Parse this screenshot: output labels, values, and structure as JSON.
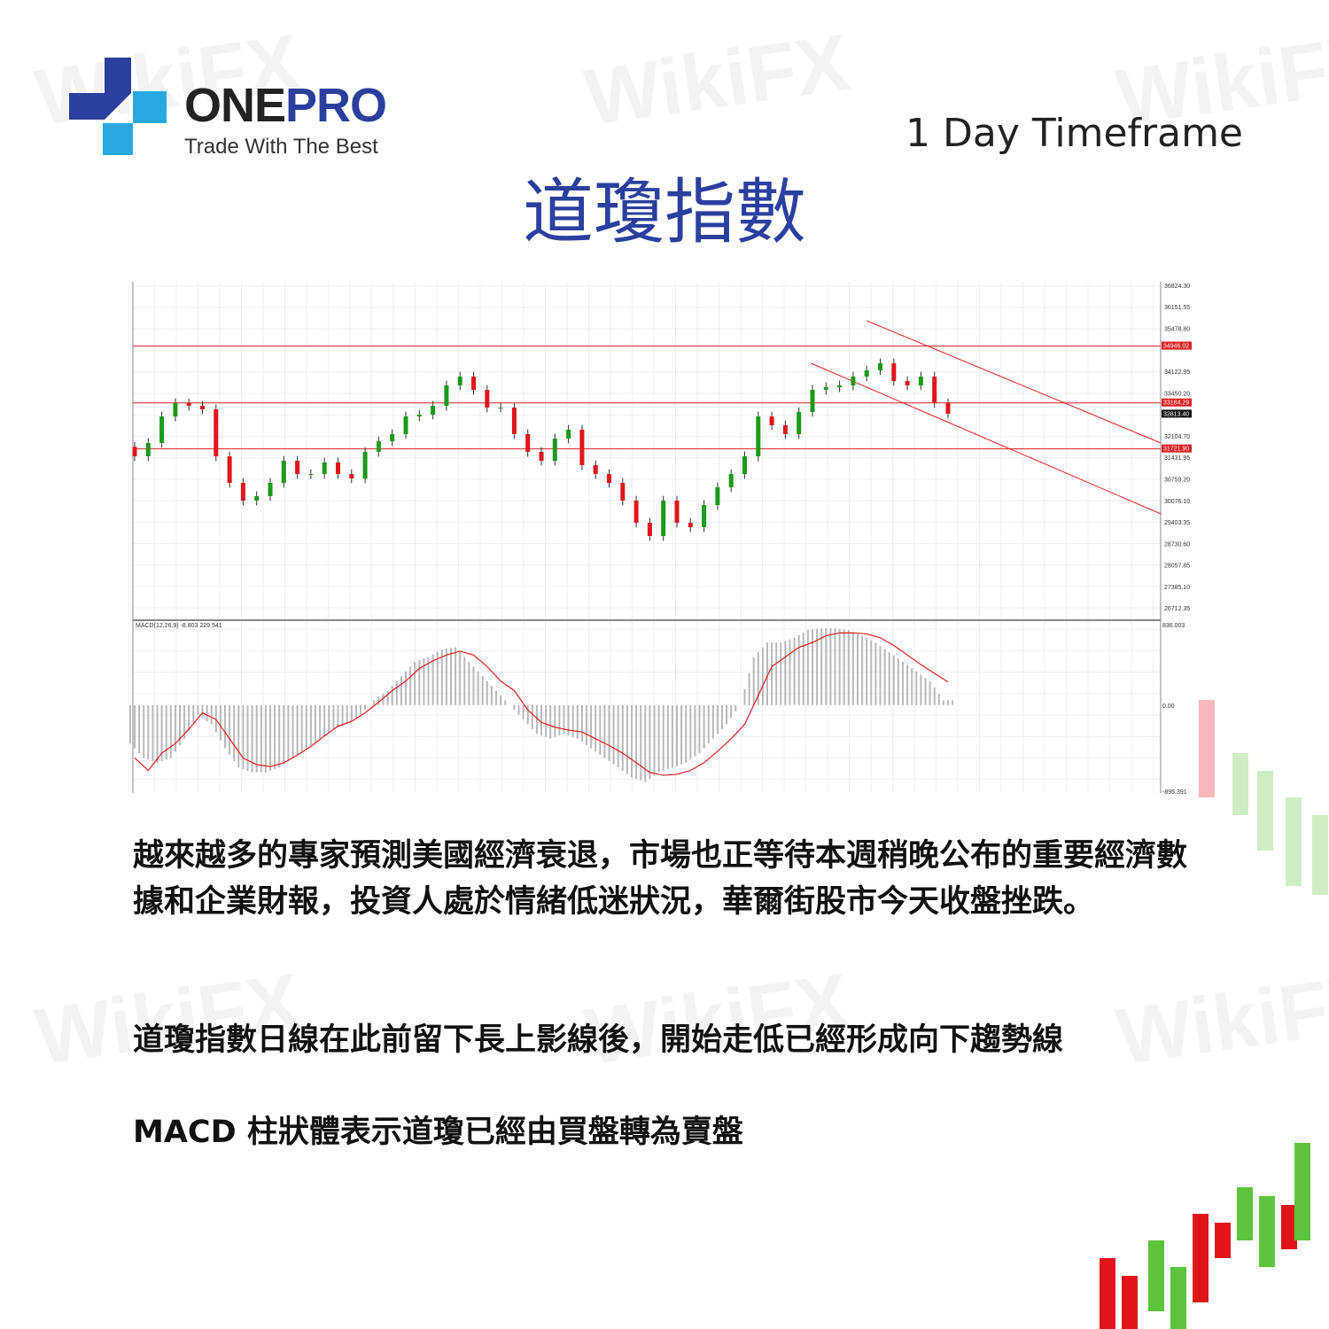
{
  "brand": {
    "name_part1": "ONE",
    "name_part2": "PRO",
    "tagline": "Trade With The Best",
    "watermark": "WikiFX"
  },
  "header": {
    "timeframe": "1 Day Timeframe",
    "title": "道瓊指數"
  },
  "paragraphs": [
    "越來越多的專家預測美國經濟衰退，市場也正等待本週稍晚公布的重要經濟數據和企業財報，投資人處於情緒低迷狀況，華爾街股市今天收盤挫跌。",
    "道瓊指數日線在此前留下長上影線後，開始走低已經形成向下趨勢線",
    "MACD 柱狀體表示道瓊已經由買盤轉為賣盤"
  ],
  "colors": {
    "brand_blue": "#2a3f9e",
    "accent_cyan": "#29a8e0",
    "bull": "#1a9a1a",
    "bear": "#e0151b",
    "level_line": "#e02020",
    "macd_hist": "#b8b8b8",
    "signal": "#e02020"
  },
  "chart_data": {
    "type": "candlestick",
    "price_axis": {
      "ticks": [
        "36824.30",
        "36151.55",
        "35478.80",
        "34122.95",
        "33450.20",
        "32104.70",
        "31431.95",
        "30759.20",
        "30076.10",
        "29403.35",
        "28730.60",
        "28057.85",
        "27385.10",
        "26712.35"
      ],
      "range": [
        26712.35,
        36824.3
      ]
    },
    "level_lines": [
      {
        "label": "34946.02",
        "value": 34946.02
      },
      {
        "label": "33164.29",
        "value": 33164.29
      },
      {
        "label": "31721.90",
        "value": 31721.9
      }
    ],
    "current_price": {
      "label": "32813.40",
      "value": 32813.4
    },
    "closes": [
      31490,
      31907,
      32740,
      33157,
      33074,
      32963,
      31490,
      30657,
      30101,
      30240,
      30657,
      31351,
      30935,
      30935,
      31296,
      30935,
      30796,
      31629,
      31962,
      32185,
      32740,
      32796,
      33074,
      33713,
      33990,
      33574,
      33018,
      33018,
      32185,
      31629,
      31351,
      32046,
      32324,
      31212,
      30935,
      30657,
      30101,
      29407,
      28990,
      30101,
      29407,
      29268,
      29962,
      30518,
      30935,
      31490,
      32740,
      32463,
      32185,
      32879,
      33574,
      33657,
      33713,
      33990,
      34185,
      34407,
      33852,
      33713,
      33990,
      33157,
      32824
    ],
    "trend_lines": [
      {
        "from": [
          54,
          35741
        ],
        "to": [
          75.7,
          31907
        ]
      },
      {
        "from": [
          49.9,
          34407
        ],
        "to": [
          75.7,
          29685
        ]
      }
    ],
    "macd": {
      "label": "MACD(12,26,9) -8.803 229.541",
      "axis_ticks": [
        "836.003",
        "0.00",
        "-895.391"
      ],
      "range": [
        -895.391,
        836.003
      ],
      "histogram": [
        -400,
        -550,
        -600,
        -550,
        -350,
        -100,
        -200,
        -450,
        -650,
        -700,
        -700,
        -650,
        -550,
        -450,
        -350,
        -250,
        -200,
        -100,
        50,
        150,
        300,
        450,
        500,
        580,
        600,
        450,
        300,
        150,
        0,
        -150,
        -300,
        -350,
        -300,
        -350,
        -450,
        -550,
        -650,
        -750,
        -800,
        -700,
        -650,
        -600,
        -500,
        -350,
        -200,
        0,
        500,
        650,
        650,
        700,
        780,
        800,
        800,
        780,
        720,
        650,
        550,
        450,
        350,
        250,
        50
      ],
      "signal": [
        -550,
        -680,
        -500,
        -400,
        -250,
        -80,
        -150,
        -350,
        -550,
        -620,
        -640,
        -600,
        -520,
        -430,
        -320,
        -220,
        -170,
        -80,
        30,
        150,
        250,
        380,
        460,
        520,
        560,
        520,
        400,
        250,
        150,
        -50,
        -180,
        -230,
        -260,
        -280,
        -350,
        -420,
        -500,
        -600,
        -700,
        -730,
        -720,
        -680,
        -600,
        -480,
        -350,
        -200,
        100,
        400,
        500,
        600,
        650,
        720,
        750,
        750,
        740,
        700,
        620,
        520,
        420,
        330,
        240
      ]
    },
    "grid": true
  }
}
